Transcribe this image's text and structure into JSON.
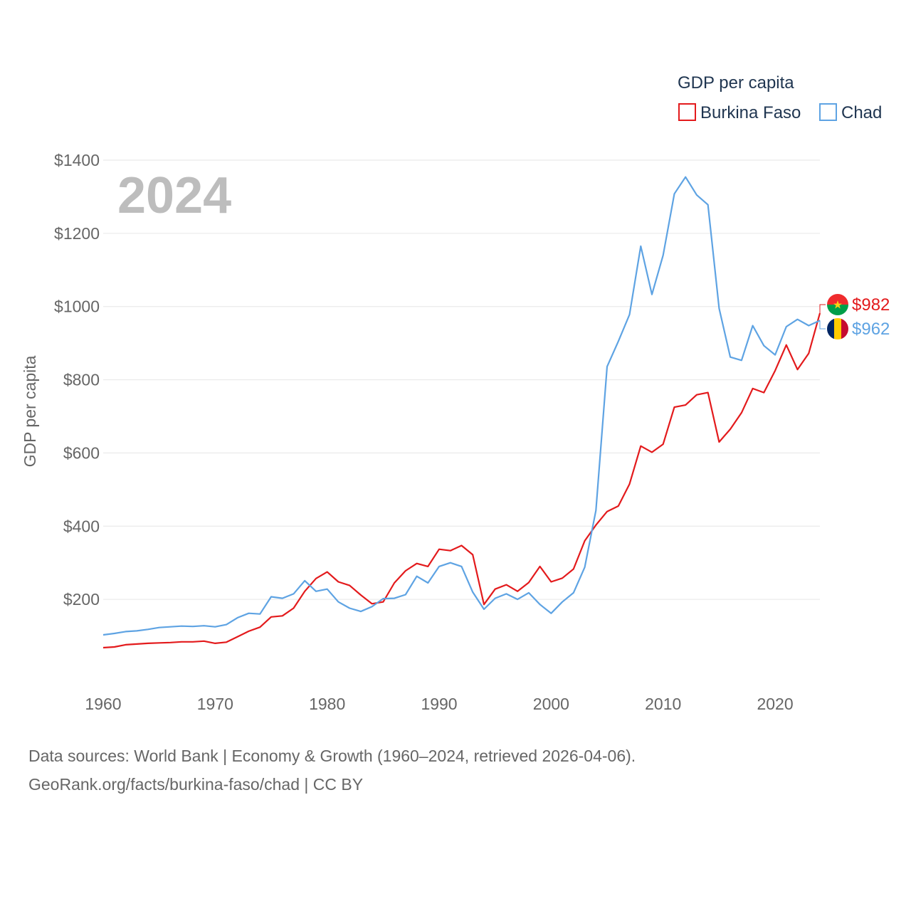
{
  "chart_data": {
    "type": "line",
    "year_label": "2024",
    "ylabel": "GDP per capita",
    "legend": {
      "title": "GDP per capita",
      "placement": "top-right"
    },
    "x_ticks": [
      1960,
      1970,
      1980,
      1990,
      2000,
      2010,
      2020
    ],
    "y_ticks": [
      {
        "value": 200,
        "label": "$200"
      },
      {
        "value": 400,
        "label": "$400"
      },
      {
        "value": 600,
        "label": "$600"
      },
      {
        "value": 800,
        "label": "$800"
      },
      {
        "value": 1000,
        "label": "$1000"
      },
      {
        "value": 1200,
        "label": "$1200"
      },
      {
        "value": 1400,
        "label": "$1400"
      }
    ],
    "xlim": [
      1960,
      2024
    ],
    "ylim": [
      0,
      1400
    ],
    "series": [
      {
        "name": "Burkina Faso",
        "color": "#e31a1c",
        "end_label": "$982",
        "flag": "burkina-faso-flag-icon",
        "x": [
          1960,
          1961,
          1962,
          1963,
          1964,
          1965,
          1966,
          1967,
          1968,
          1969,
          1970,
          1971,
          1972,
          1973,
          1974,
          1975,
          1976,
          1977,
          1978,
          1979,
          1980,
          1981,
          1982,
          1983,
          1984,
          1985,
          1986,
          1987,
          1988,
          1989,
          1990,
          1991,
          1992,
          1993,
          1994,
          1995,
          1996,
          1997,
          1998,
          1999,
          2000,
          2001,
          2002,
          2003,
          2004,
          2005,
          2006,
          2007,
          2008,
          2009,
          2010,
          2011,
          2012,
          2013,
          2014,
          2015,
          2016,
          2017,
          2018,
          2019,
          2020,
          2021,
          2022,
          2023,
          2024
        ],
        "values": [
          68,
          70,
          76,
          78,
          80,
          81,
          82,
          84,
          84,
          86,
          80,
          83,
          98,
          113,
          124,
          152,
          155,
          176,
          222,
          257,
          275,
          248,
          238,
          212,
          188,
          193,
          245,
          278,
          298,
          290,
          337,
          333,
          347,
          322,
          186,
          228,
          240,
          222,
          246,
          290,
          248,
          258,
          283,
          360,
          403,
          440,
          455,
          515,
          619,
          602,
          624,
          725,
          731,
          759,
          765,
          630,
          665,
          710,
          776,
          765,
          825,
          895,
          828,
          872,
          982
        ]
      },
      {
        "name": "Chad",
        "color": "#5ea3e3",
        "end_label": "$962",
        "flag": "chad-flag-icon",
        "x": [
          1960,
          1961,
          1962,
          1963,
          1964,
          1965,
          1966,
          1967,
          1968,
          1969,
          1970,
          1971,
          1972,
          1973,
          1974,
          1975,
          1976,
          1977,
          1978,
          1979,
          1980,
          1981,
          1982,
          1983,
          1984,
          1985,
          1986,
          1987,
          1988,
          1989,
          1990,
          1991,
          1992,
          1993,
          1994,
          1995,
          1996,
          1997,
          1998,
          1999,
          2000,
          2001,
          2002,
          2003,
          2004,
          2005,
          2006,
          2007,
          2008,
          2009,
          2010,
          2011,
          2012,
          2013,
          2014,
          2015,
          2016,
          2017,
          2018,
          2019,
          2020,
          2021,
          2022,
          2023,
          2024
        ],
        "values": [
          103,
          107,
          112,
          114,
          118,
          123,
          125,
          127,
          126,
          128,
          125,
          131,
          150,
          162,
          160,
          207,
          203,
          215,
          251,
          222,
          228,
          193,
          176,
          167,
          180,
          202,
          203,
          213,
          263,
          245,
          290,
          300,
          290,
          220,
          173,
          203,
          215,
          200,
          218,
          186,
          162,
          193,
          218,
          288,
          443,
          836,
          905,
          978,
          1165,
          1033,
          1140,
          1308,
          1354,
          1305,
          1278,
          995,
          862,
          853,
          948,
          893,
          868,
          945,
          965,
          948,
          962
        ]
      }
    ]
  },
  "footer": {
    "line1": "Data sources: World Bank | Economy & Growth (1960–2024, retrieved 2026-04-06).",
    "line2": "GeoRank.org/facts/burkina-faso/chad | CC BY"
  }
}
